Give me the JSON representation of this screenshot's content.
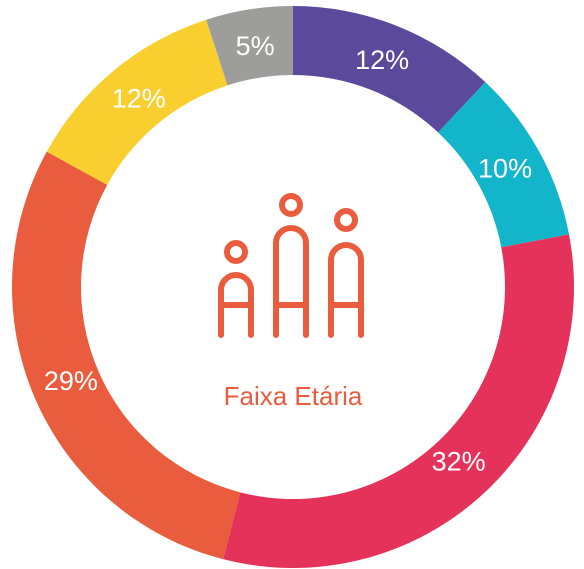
{
  "chart_data": {
    "type": "donut",
    "title": "Faixa Etária",
    "values": [
      12,
      10,
      32,
      29,
      12,
      5
    ],
    "value_labels": [
      "12%",
      "10%",
      "32%",
      "29%",
      "12%",
      "5%"
    ],
    "colors": [
      "#5b4a9b",
      "#13b5cb",
      "#e5325a",
      "#e95c3e",
      "#f9cf2f",
      "#9d9d9c"
    ]
  }
}
